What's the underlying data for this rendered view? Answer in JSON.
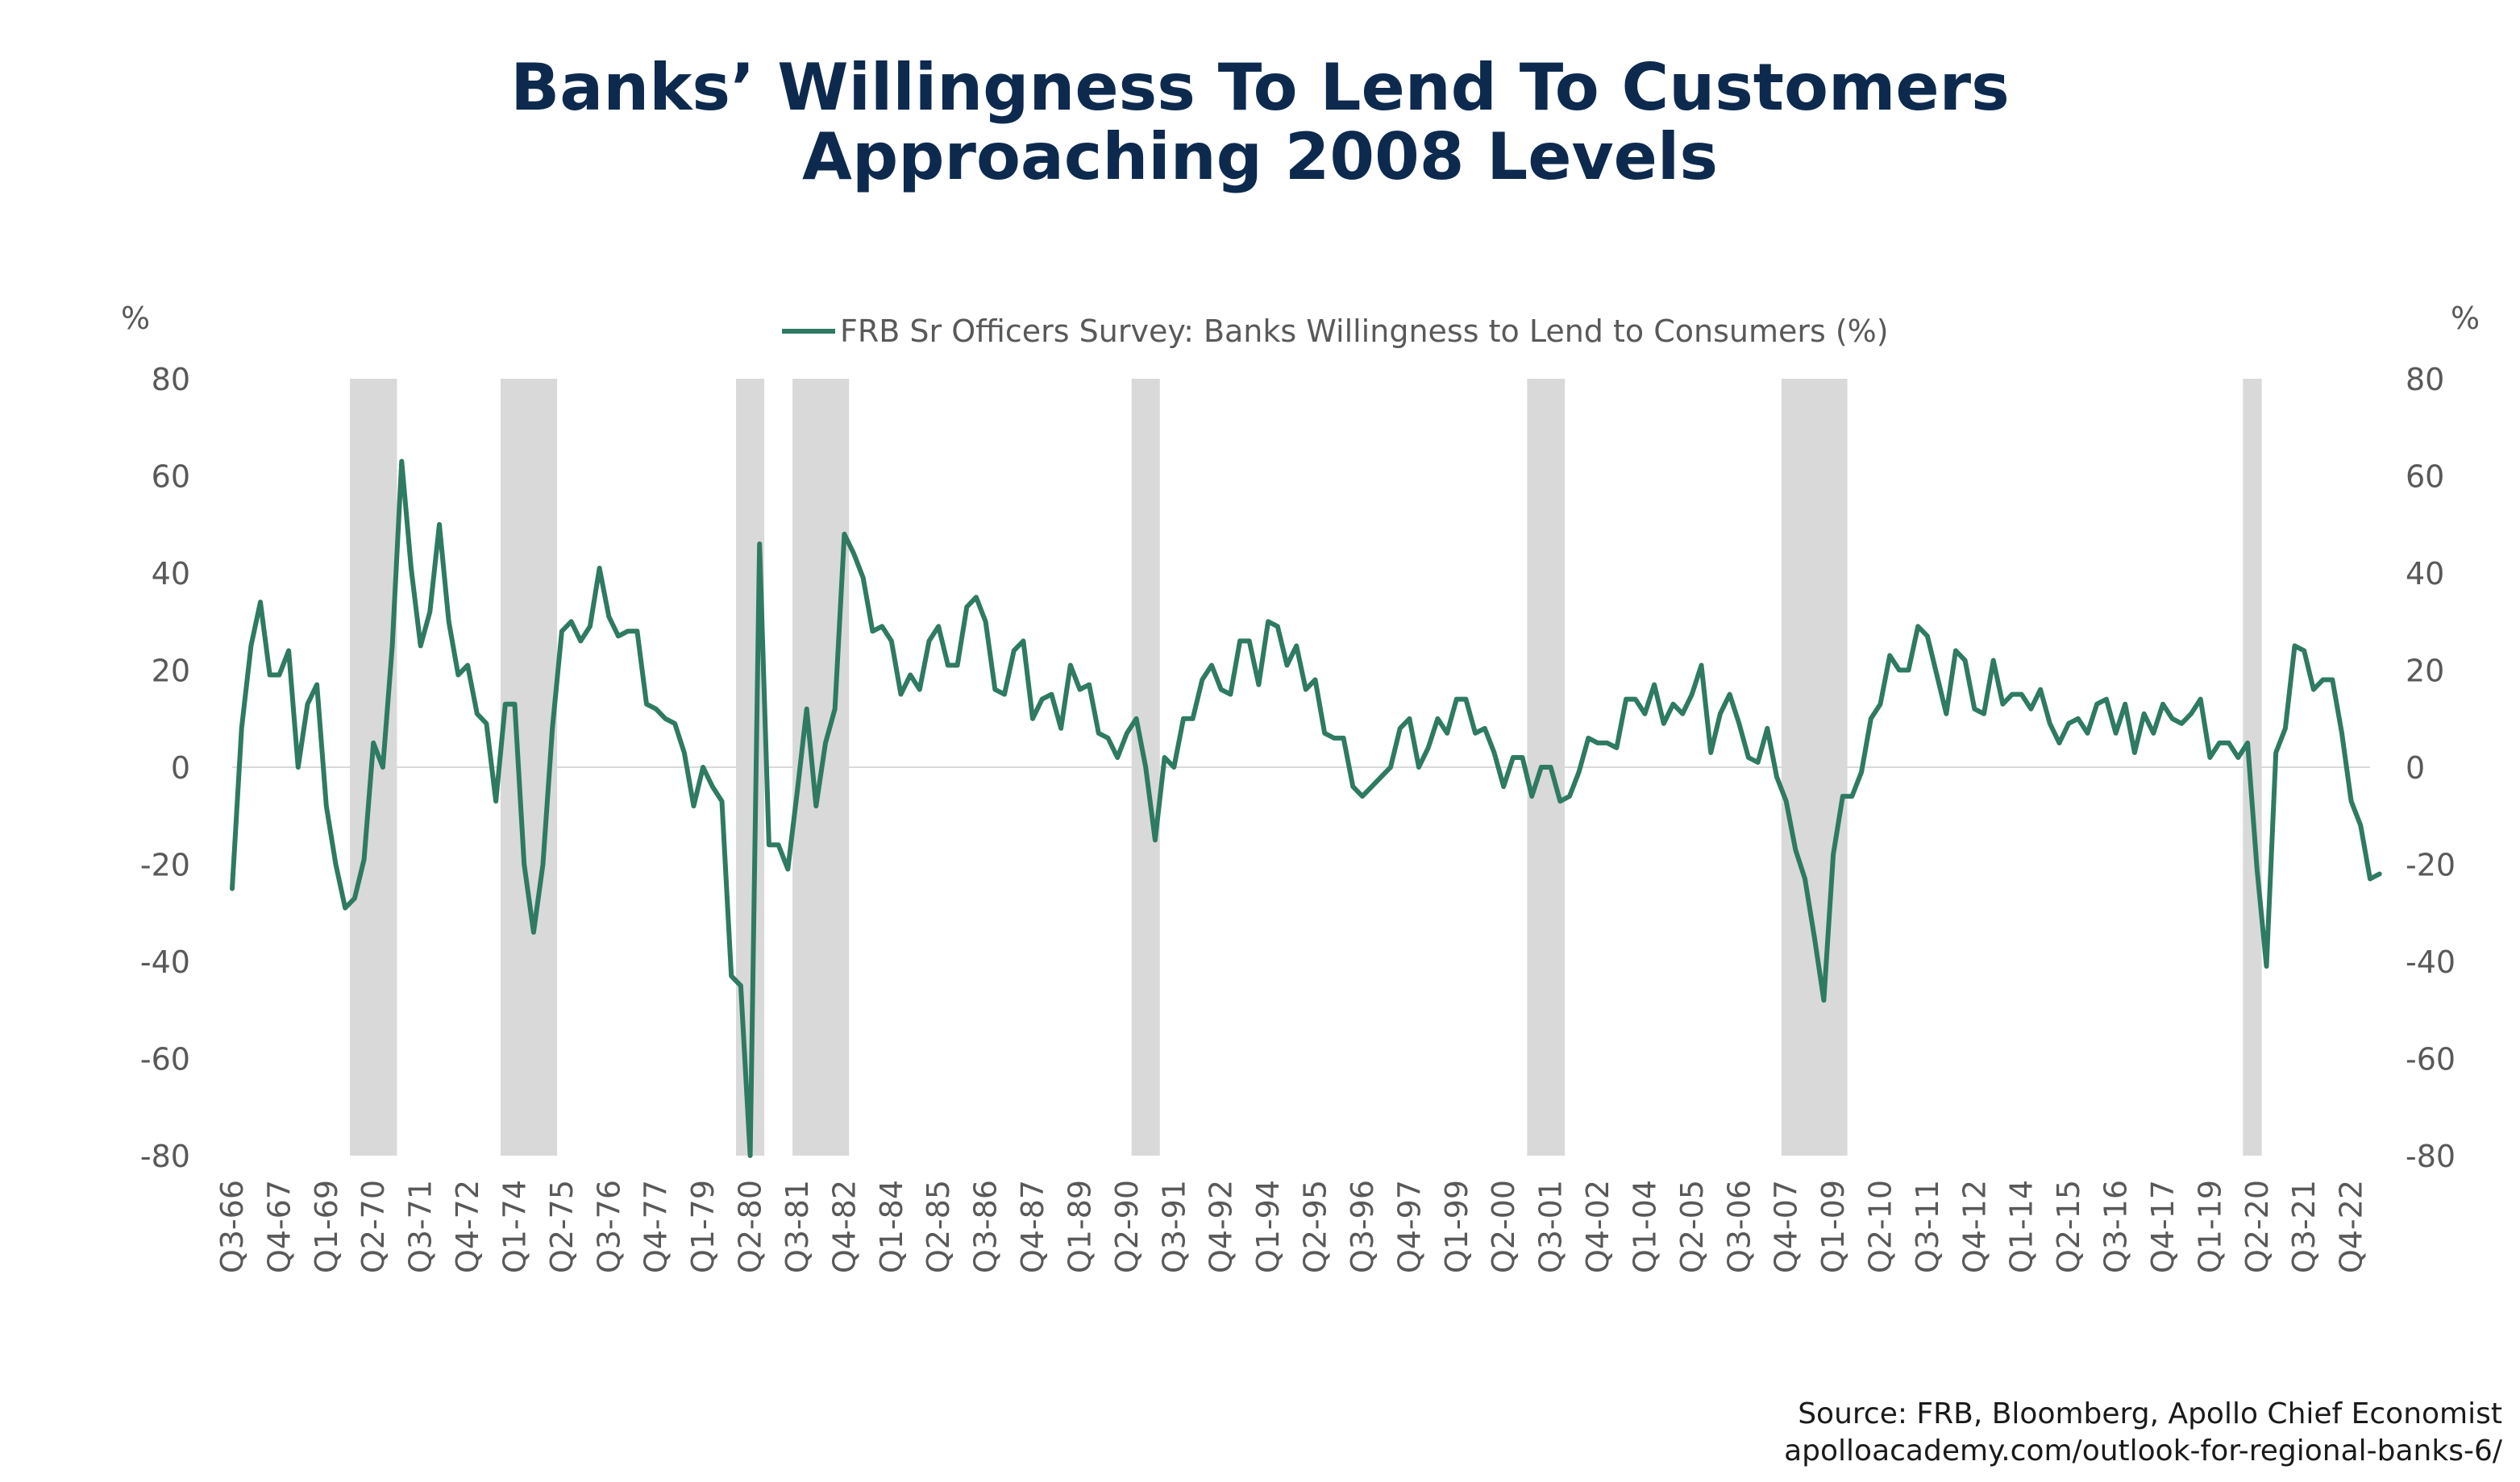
{
  "title_lines": [
    "Banks’ Willingness To Lend To Customers",
    "Approaching 2008 Levels"
  ],
  "source_lines": [
    "Source: FRB, Bloomberg, Apollo Chief Economist",
    "apolloacademy.com/outlook-for-regional-banks-6/"
  ],
  "colors": {
    "title": "#0d2a4e",
    "line": "#2e7a62",
    "recession": "#d9d9d9",
    "axis_text": "#595959"
  },
  "chart_data": {
    "type": "line",
    "title": "",
    "xlabel": "",
    "ylabel": "%",
    "y2label": "%",
    "ylim": [
      -80,
      80
    ],
    "yticks": [
      80,
      60,
      40,
      20,
      0,
      -20,
      -40,
      -60,
      -80
    ],
    "xlim_quarter_index": [
      0,
      227
    ],
    "xtick_labels": [
      "Q3-66",
      "Q4-67",
      "Q1-69",
      "Q2-70",
      "Q3-71",
      "Q4-72",
      "Q1-74",
      "Q2-75",
      "Q3-76",
      "Q4-77",
      "Q1-79",
      "Q2-80",
      "Q3-81",
      "Q4-82",
      "Q1-84",
      "Q2-85",
      "Q3-86",
      "Q4-87",
      "Q1-89",
      "Q2-90",
      "Q3-91",
      "Q4-92",
      "Q1-94",
      "Q2-95",
      "Q3-96",
      "Q4-97",
      "Q1-99",
      "Q2-00",
      "Q3-01",
      "Q4-02",
      "Q1-04",
      "Q2-05",
      "Q3-06",
      "Q4-07",
      "Q1-09",
      "Q2-10",
      "Q3-11",
      "Q4-12",
      "Q1-14",
      "Q2-15",
      "Q3-16",
      "Q4-17",
      "Q1-19",
      "Q2-20",
      "Q3-21",
      "Q4-22"
    ],
    "xtick_step_quarters": 5,
    "legend": "top-center",
    "legend_label": "FRB Sr Officers Survey: Banks Willingness to Lend to Consumers (%)",
    "recessions": [
      {
        "start": "Q4-69",
        "end": "Q4-70"
      },
      {
        "start": "Q4-73",
        "end": "Q1-75"
      },
      {
        "start": "Q1-80",
        "end": "Q3-80"
      },
      {
        "start": "Q3-81",
        "end": "Q4-82"
      },
      {
        "start": "Q3-90",
        "end": "Q1-91"
      },
      {
        "start": "Q1-01",
        "end": "Q4-01"
      },
      {
        "start": "Q4-07",
        "end": "Q2-09"
      },
      {
        "start": "Q1-20",
        "end": "Q2-20"
      }
    ],
    "series": [
      {
        "name": "FRB Sr Officers Survey: Banks Willingness to Lend to Consumers (%)",
        "points": [
          [
            "Q3-66",
            -25
          ],
          [
            "Q4-66",
            8
          ],
          [
            "Q1-67",
            25
          ],
          [
            "Q2-67",
            34
          ],
          [
            "Q3-67",
            19
          ],
          [
            "Q4-67",
            19
          ],
          [
            "Q1-68",
            24
          ],
          [
            "Q2-68",
            0
          ],
          [
            "Q3-68",
            13
          ],
          [
            "Q4-68",
            17
          ],
          [
            "Q1-69",
            -8
          ],
          [
            "Q2-69",
            -20
          ],
          [
            "Q3-69",
            -29
          ],
          [
            "Q4-69",
            -27
          ],
          [
            "Q1-70",
            -19
          ],
          [
            "Q2-70",
            5
          ],
          [
            "Q3-70",
            0
          ],
          [
            "Q4-70",
            25
          ],
          [
            "Q1-71",
            63
          ],
          [
            "Q2-71",
            41
          ],
          [
            "Q3-71",
            25
          ],
          [
            "Q4-71",
            32
          ],
          [
            "Q1-72",
            50
          ],
          [
            "Q2-72",
            30
          ],
          [
            "Q3-72",
            19
          ],
          [
            "Q4-72",
            21
          ],
          [
            "Q1-73",
            11
          ],
          [
            "Q2-73",
            9
          ],
          [
            "Q3-73",
            -7
          ],
          [
            "Q4-73",
            13
          ],
          [
            "Q1-74",
            13
          ],
          [
            "Q2-74",
            -20
          ],
          [
            "Q3-74",
            -34
          ],
          [
            "Q4-74",
            -20
          ],
          [
            "Q1-75",
            8
          ],
          [
            "Q2-75",
            28
          ],
          [
            "Q3-75",
            30
          ],
          [
            "Q4-75",
            26
          ],
          [
            "Q1-76",
            29
          ],
          [
            "Q2-76",
            41
          ],
          [
            "Q3-76",
            31
          ],
          [
            "Q4-76",
            27
          ],
          [
            "Q1-77",
            28
          ],
          [
            "Q2-77",
            28
          ],
          [
            "Q3-77",
            13
          ],
          [
            "Q4-77",
            12
          ],
          [
            "Q1-78",
            10
          ],
          [
            "Q2-78",
            9
          ],
          [
            "Q3-78",
            3
          ],
          [
            "Q4-78",
            -8
          ],
          [
            "Q1-79",
            0
          ],
          [
            "Q2-79",
            -4
          ],
          [
            "Q3-79",
            -7
          ],
          [
            "Q4-79",
            -43
          ],
          [
            "Q1-80",
            -45
          ],
          [
            "Q2-80",
            -80
          ],
          [
            "Q3-80",
            46
          ],
          [
            "Q4-80",
            -16
          ],
          [
            "Q1-81",
            -16
          ],
          [
            "Q2-81",
            -21
          ],
          [
            "Q3-81",
            -5
          ],
          [
            "Q4-81",
            12
          ],
          [
            "Q1-82",
            -8
          ],
          [
            "Q2-82",
            5
          ],
          [
            "Q3-82",
            12
          ],
          [
            "Q4-82",
            48
          ],
          [
            "Q1-83",
            44
          ],
          [
            "Q2-83",
            39
          ],
          [
            "Q3-83",
            28
          ],
          [
            "Q4-83",
            29
          ],
          [
            "Q1-84",
            26
          ],
          [
            "Q2-84",
            15
          ],
          [
            "Q3-84",
            19
          ],
          [
            "Q4-84",
            16
          ],
          [
            "Q1-85",
            26
          ],
          [
            "Q2-85",
            29
          ],
          [
            "Q3-85",
            21
          ],
          [
            "Q4-85",
            21
          ],
          [
            "Q1-86",
            33
          ],
          [
            "Q2-86",
            35
          ],
          [
            "Q3-86",
            30
          ],
          [
            "Q4-86",
            16
          ],
          [
            "Q1-87",
            15
          ],
          [
            "Q2-87",
            24
          ],
          [
            "Q3-87",
            26
          ],
          [
            "Q4-87",
            10
          ],
          [
            "Q1-88",
            14
          ],
          [
            "Q2-88",
            15
          ],
          [
            "Q3-88",
            8
          ],
          [
            "Q4-88",
            21
          ],
          [
            "Q1-89",
            16
          ],
          [
            "Q2-89",
            17
          ],
          [
            "Q3-89",
            7
          ],
          [
            "Q4-89",
            6
          ],
          [
            "Q1-90",
            2
          ],
          [
            "Q2-90",
            7
          ],
          [
            "Q3-90",
            10
          ],
          [
            "Q4-90",
            0
          ],
          [
            "Q1-91",
            -15
          ],
          [
            "Q2-91",
            2
          ],
          [
            "Q3-91",
            0
          ],
          [
            "Q4-91",
            10
          ],
          [
            "Q1-92",
            10
          ],
          [
            "Q2-92",
            18
          ],
          [
            "Q3-92",
            21
          ],
          [
            "Q4-92",
            16
          ],
          [
            "Q1-93",
            15
          ],
          [
            "Q2-93",
            26
          ],
          [
            "Q3-93",
            26
          ],
          [
            "Q4-93",
            17
          ],
          [
            "Q1-94",
            30
          ],
          [
            "Q2-94",
            29
          ],
          [
            "Q3-94",
            21
          ],
          [
            "Q4-94",
            25
          ],
          [
            "Q1-95",
            16
          ],
          [
            "Q2-95",
            18
          ],
          [
            "Q3-95",
            7
          ],
          [
            "Q4-95",
            6
          ],
          [
            "Q1-96",
            6
          ],
          [
            "Q2-96",
            -4
          ],
          [
            "Q3-96",
            -6
          ],
          [
            "Q4-96",
            -4
          ],
          [
            "Q1-97",
            -2
          ],
          [
            "Q2-97",
            0
          ],
          [
            "Q3-97",
            8
          ],
          [
            "Q4-97",
            10
          ],
          [
            "Q1-98",
            0
          ],
          [
            "Q2-98",
            4
          ],
          [
            "Q3-98",
            10
          ],
          [
            "Q4-98",
            7
          ],
          [
            "Q1-99",
            14
          ],
          [
            "Q2-99",
            14
          ],
          [
            "Q3-99",
            7
          ],
          [
            "Q4-99",
            8
          ],
          [
            "Q1-00",
            3
          ],
          [
            "Q2-00",
            -4
          ],
          [
            "Q3-00",
            2
          ],
          [
            "Q4-00",
            2
          ],
          [
            "Q1-01",
            -6
          ],
          [
            "Q2-01",
            0
          ],
          [
            "Q3-01",
            0
          ],
          [
            "Q4-01",
            -7
          ],
          [
            "Q1-02",
            -6
          ],
          [
            "Q2-02",
            -1
          ],
          [
            "Q3-02",
            6
          ],
          [
            "Q4-02",
            5
          ],
          [
            "Q1-03",
            5
          ],
          [
            "Q2-03",
            4
          ],
          [
            "Q3-03",
            14
          ],
          [
            "Q4-03",
            14
          ],
          [
            "Q1-04",
            11
          ],
          [
            "Q2-04",
            17
          ],
          [
            "Q3-04",
            9
          ],
          [
            "Q4-04",
            13
          ],
          [
            "Q1-05",
            11
          ],
          [
            "Q2-05",
            15
          ],
          [
            "Q3-05",
            21
          ],
          [
            "Q4-05",
            3
          ],
          [
            "Q1-06",
            11
          ],
          [
            "Q2-06",
            15
          ],
          [
            "Q3-06",
            9
          ],
          [
            "Q4-06",
            2
          ],
          [
            "Q1-07",
            1
          ],
          [
            "Q2-07",
            8
          ],
          [
            "Q3-07",
            -2
          ],
          [
            "Q4-07",
            -7
          ],
          [
            "Q1-08",
            -17
          ],
          [
            "Q2-08",
            -23
          ],
          [
            "Q3-08",
            -35
          ],
          [
            "Q4-08",
            -48
          ],
          [
            "Q1-09",
            -18
          ],
          [
            "Q2-09",
            -6
          ],
          [
            "Q3-09",
            -6
          ],
          [
            "Q4-09",
            -1
          ],
          [
            "Q1-10",
            10
          ],
          [
            "Q2-10",
            13
          ],
          [
            "Q3-10",
            23
          ],
          [
            "Q4-10",
            20
          ],
          [
            "Q1-11",
            20
          ],
          [
            "Q2-11",
            29
          ],
          [
            "Q3-11",
            27
          ],
          [
            "Q4-11",
            19
          ],
          [
            "Q1-12",
            11
          ],
          [
            "Q2-12",
            24
          ],
          [
            "Q3-12",
            22
          ],
          [
            "Q4-12",
            12
          ],
          [
            "Q1-13",
            11
          ],
          [
            "Q2-13",
            22
          ],
          [
            "Q3-13",
            13
          ],
          [
            "Q4-13",
            15
          ],
          [
            "Q1-14",
            15
          ],
          [
            "Q2-14",
            12
          ],
          [
            "Q3-14",
            16
          ],
          [
            "Q4-14",
            9
          ],
          [
            "Q1-15",
            5
          ],
          [
            "Q2-15",
            9
          ],
          [
            "Q3-15",
            10
          ],
          [
            "Q4-15",
            7
          ],
          [
            "Q1-16",
            13
          ],
          [
            "Q2-16",
            14
          ],
          [
            "Q3-16",
            7
          ],
          [
            "Q4-16",
            13
          ],
          [
            "Q1-17",
            3
          ],
          [
            "Q2-17",
            11
          ],
          [
            "Q3-17",
            7
          ],
          [
            "Q4-17",
            13
          ],
          [
            "Q1-18",
            10
          ],
          [
            "Q2-18",
            9
          ],
          [
            "Q3-18",
            11
          ],
          [
            "Q4-18",
            14
          ],
          [
            "Q1-19",
            2
          ],
          [
            "Q2-19",
            5
          ],
          [
            "Q3-19",
            5
          ],
          [
            "Q4-19",
            2
          ],
          [
            "Q1-20",
            5
          ],
          [
            "Q2-20",
            -21
          ],
          [
            "Q3-20",
            -41
          ],
          [
            "Q4-20",
            3
          ],
          [
            "Q1-21",
            8
          ],
          [
            "Q2-21",
            25
          ],
          [
            "Q3-21",
            24
          ],
          [
            "Q4-21",
            16
          ],
          [
            "Q1-22",
            18
          ],
          [
            "Q2-22",
            18
          ],
          [
            "Q3-22",
            7
          ],
          [
            "Q4-22",
            -7
          ],
          [
            "Q1-23",
            -12
          ],
          [
            "Q2-23",
            -23
          ],
          [
            "Q3-23",
            -22
          ]
        ]
      }
    ]
  }
}
